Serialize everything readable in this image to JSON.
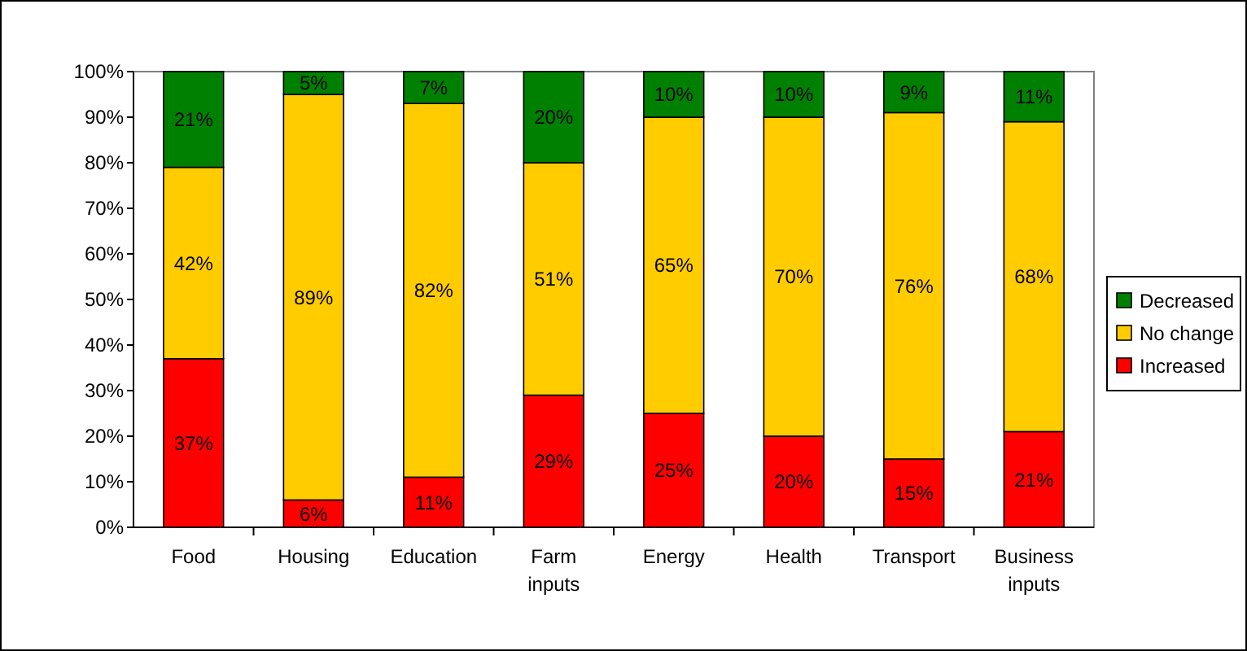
{
  "chart_data": {
    "type": "bar",
    "stacked": true,
    "categories": [
      "Food",
      "Housing",
      "Education",
      "Farm inputs",
      "Energy",
      "Health",
      "Transport",
      "Business inputs"
    ],
    "series": [
      {
        "name": "Increased",
        "color": "#ff0000",
        "values": [
          37,
          6,
          11,
          29,
          25,
          20,
          15,
          21
        ],
        "value_labels": [
          "37%",
          "6%",
          "11%",
          "29%",
          "25%",
          "20%",
          "15%",
          "21%"
        ]
      },
      {
        "name": "No change",
        "color": "#ffcc00",
        "values": [
          42,
          89,
          82,
          51,
          65,
          70,
          76,
          68
        ],
        "value_labels": [
          "42%",
          "89%",
          "82%",
          "51%",
          "65%",
          "70%",
          "76%",
          "68%"
        ]
      },
      {
        "name": "Decreased",
        "color": "#008000",
        "values": [
          21,
          5,
          7,
          20,
          10,
          10,
          9,
          11
        ],
        "value_labels": [
          "21%",
          "5%",
          "7%",
          "20%",
          "10%",
          "10%",
          "9%",
          "11%"
        ]
      }
    ],
    "ylim": [
      0,
      100
    ],
    "yticks": [
      {
        "value": 0,
        "label": "0%"
      },
      {
        "value": 10,
        "label": "10%"
      },
      {
        "value": 20,
        "label": "20%"
      },
      {
        "value": 30,
        "label": "30%"
      },
      {
        "value": 40,
        "label": "40%"
      },
      {
        "value": 50,
        "label": "50%"
      },
      {
        "value": 60,
        "label": "60%"
      },
      {
        "value": 70,
        "label": "70%"
      },
      {
        "value": 80,
        "label": "80%"
      },
      {
        "value": 90,
        "label": "90%"
      },
      {
        "value": 100,
        "label": "100%"
      }
    ],
    "grid": false,
    "legend": "right"
  }
}
